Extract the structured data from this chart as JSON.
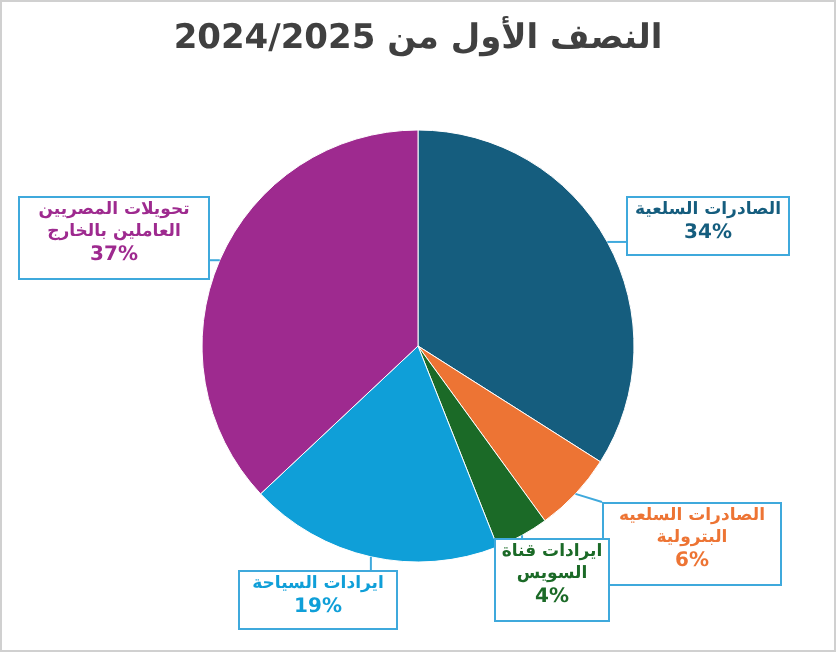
{
  "chart_data": {
    "type": "pie",
    "title": "النصف الأول من 2024/2025",
    "categories": [
      "الصادرات السلعية",
      "الصادرات السلعيه البترولية",
      "ايرادات قناة السويس",
      "ايرادات السياحة",
      "تحويلات المصريين العاملين بالخارج"
    ],
    "values": [
      34,
      6,
      4,
      19,
      37
    ],
    "value_labels": [
      "34%",
      "6%",
      "4%",
      "19%",
      "37%"
    ],
    "colors": [
      "#155d7e",
      "#ed7434",
      "#1b6a27",
      "#0f9fd8",
      "#9e2a8f"
    ]
  }
}
